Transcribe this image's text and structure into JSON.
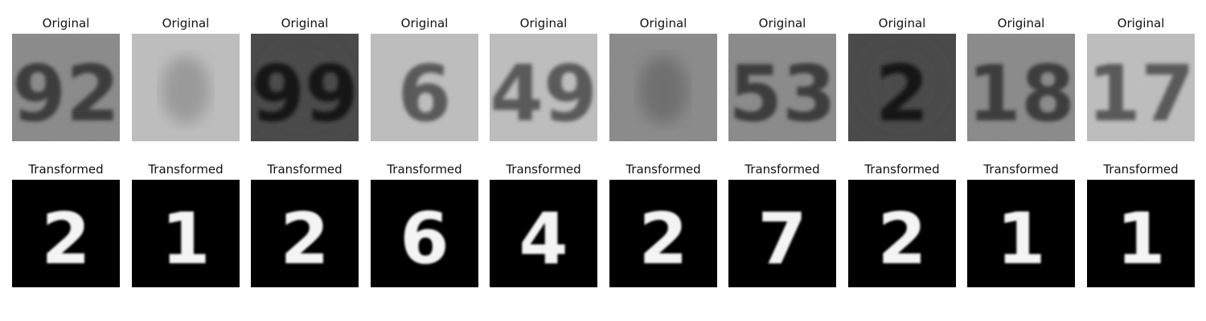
{
  "rows": [
    {
      "label": "Original",
      "images": [
        {
          "depicts": "92",
          "tone": "gray"
        },
        {
          "depicts": "blurred digit",
          "tone": "light"
        },
        {
          "depicts": "99",
          "tone": "dark"
        },
        {
          "depicts": "6",
          "tone": "light"
        },
        {
          "depicts": "49",
          "tone": "light"
        },
        {
          "depicts": "blurred digit",
          "tone": "gray"
        },
        {
          "depicts": "53",
          "tone": "gray"
        },
        {
          "depicts": "2",
          "tone": "dark"
        },
        {
          "depicts": "18",
          "tone": "gray"
        },
        {
          "depicts": "17",
          "tone": "light"
        }
      ]
    },
    {
      "label": "Transformed",
      "images": [
        {
          "depicts": "2"
        },
        {
          "depicts": "1"
        },
        {
          "depicts": "2"
        },
        {
          "depicts": "6"
        },
        {
          "depicts": "4"
        },
        {
          "depicts": "2"
        },
        {
          "depicts": "7"
        },
        {
          "depicts": "2"
        },
        {
          "depicts": "1"
        },
        {
          "depicts": "1"
        }
      ]
    }
  ],
  "labels": {
    "original": "Original",
    "transformed": "Transformed"
  }
}
